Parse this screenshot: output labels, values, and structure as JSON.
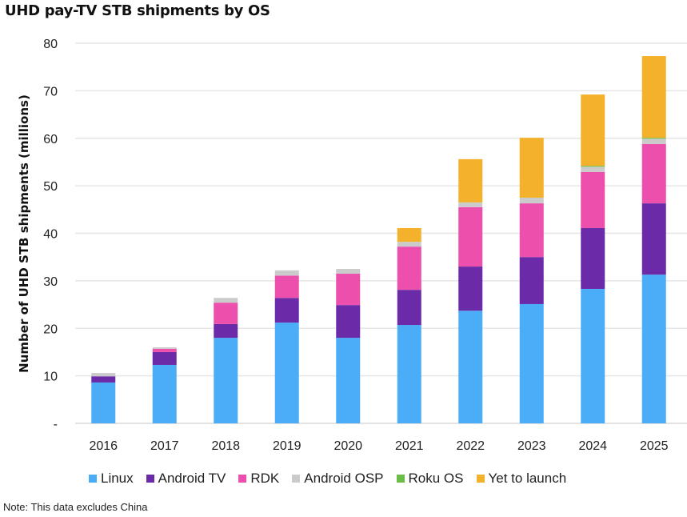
{
  "chart_data": {
    "type": "bar",
    "stacked": true,
    "title": "UHD pay-TV STB shipments by OS",
    "xlabel": "",
    "ylabel": "Number of UHD STB shipments (millions)",
    "ylim": [
      0,
      80
    ],
    "yticks": [
      0,
      10,
      20,
      30,
      40,
      50,
      60,
      70,
      80
    ],
    "ytick_labels": [
      "-",
      "10",
      "20",
      "30",
      "40",
      "50",
      "60",
      "70",
      "80"
    ],
    "grid": true,
    "legend_position": "bottom",
    "categories": [
      "2016",
      "2017",
      "2018",
      "2019",
      "2020",
      "2021",
      "2022",
      "2023",
      "2024",
      "2025"
    ],
    "series": [
      {
        "name": "Linux",
        "color": "#4BADF8",
        "values": [
          8.6,
          12.3,
          18.0,
          21.2,
          18.0,
          20.7,
          23.7,
          25.1,
          28.3,
          31.3
        ]
      },
      {
        "name": "Android TV",
        "color": "#6B2BA8",
        "values": [
          1.3,
          2.7,
          2.9,
          5.2,
          6.9,
          7.4,
          9.3,
          9.9,
          12.8,
          15.0
        ]
      },
      {
        "name": "RDK",
        "color": "#EC4FAC",
        "values": [
          0.0,
          0.7,
          4.5,
          4.7,
          6.6,
          9.1,
          12.5,
          11.3,
          11.8,
          12.5
        ]
      },
      {
        "name": "Android OSP",
        "color": "#CBCBCB",
        "values": [
          0.7,
          0.3,
          1.0,
          1.1,
          1.0,
          1.0,
          1.0,
          1.2,
          1.1,
          1.1
        ]
      },
      {
        "name": "Roku OS",
        "color": "#6BBE45",
        "values": [
          0.0,
          0.0,
          0.0,
          0.0,
          0.0,
          0.0,
          0.0,
          0.0,
          0.2,
          0.2
        ]
      },
      {
        "name": "Yet to launch",
        "color": "#F4B12B",
        "values": [
          0.0,
          0.0,
          0.0,
          0.0,
          0.0,
          2.9,
          9.1,
          12.6,
          15.0,
          17.2
        ]
      }
    ],
    "note": "Note: This data excludes China"
  }
}
